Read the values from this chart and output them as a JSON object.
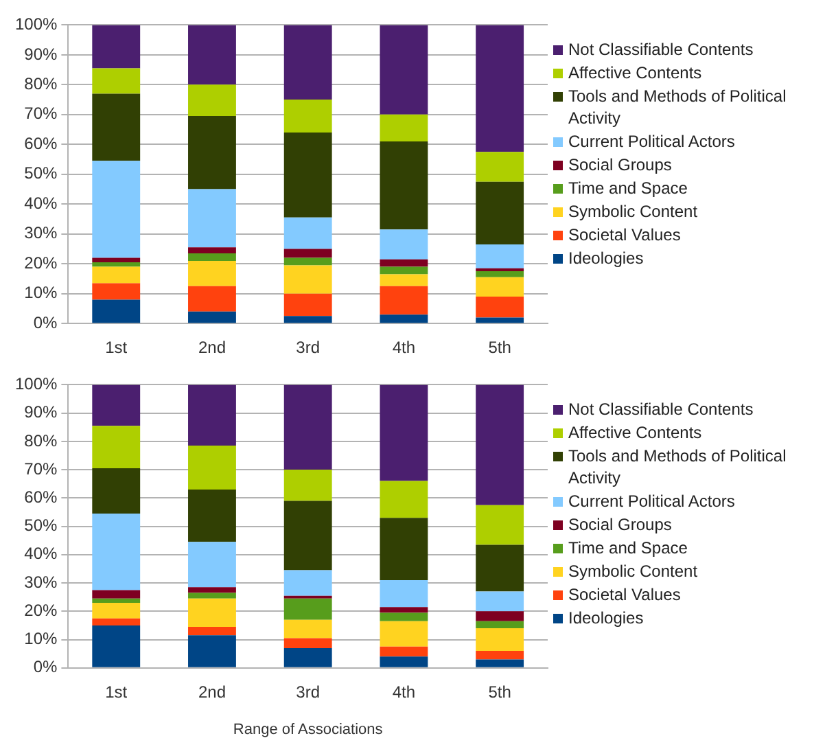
{
  "chart_data": [
    {
      "type": "bar",
      "stacked": true,
      "categories": [
        "1st",
        "2nd",
        "3rd",
        "4th",
        "5th"
      ],
      "ylim": [
        0,
        100
      ],
      "yticks": [
        {
          "value": 0,
          "label": "0%"
        },
        {
          "value": 10,
          "label": "10%"
        },
        {
          "value": 20,
          "label": "20%"
        },
        {
          "value": 30,
          "label": "30%"
        },
        {
          "value": 40,
          "label": "40%"
        },
        {
          "value": 50,
          "label": "50%"
        },
        {
          "value": 60,
          "label": "60%"
        },
        {
          "value": 70,
          "label": "70%"
        },
        {
          "value": 80,
          "label": "80%"
        },
        {
          "value": 90,
          "label": "90%"
        },
        {
          "value": 100,
          "label": "100%"
        }
      ],
      "grid": "y",
      "legend": "right",
      "series": [
        {
          "name": "Ideologies",
          "color": "#004586",
          "values": [
            8,
            4,
            2.5,
            3,
            2
          ]
        },
        {
          "name": "Societal Values",
          "color": "#ff420e",
          "values": [
            5.5,
            8.5,
            7.5,
            9.5,
            7
          ]
        },
        {
          "name": "Symbolic Content",
          "color": "#ffd320",
          "values": [
            5.5,
            8.5,
            9.5,
            4,
            6.5
          ]
        },
        {
          "name": "Time and Space",
          "color": "#579d1c",
          "values": [
            1.5,
            2.5,
            2.5,
            2.5,
            2
          ]
        },
        {
          "name": "Social Groups",
          "color": "#7e0021",
          "values": [
            1.5,
            2,
            3,
            2.5,
            1
          ]
        },
        {
          "name": "Current Political Actors",
          "color": "#83caff",
          "values": [
            32.5,
            19.5,
            10.5,
            10,
            8
          ]
        },
        {
          "name": "Tools and Methods of Political Activity",
          "color": "#314004",
          "values": [
            22.5,
            24.5,
            28.5,
            29.5,
            21
          ]
        },
        {
          "name": "Affective Contents",
          "color": "#aecf00",
          "values": [
            8.5,
            10.5,
            11,
            9,
            10
          ]
        },
        {
          "name": "Not Classifiable Contents",
          "color": "#4b1f6f",
          "values": [
            14.5,
            20,
            25,
            30,
            42.5
          ]
        }
      ]
    },
    {
      "type": "bar",
      "stacked": true,
      "xlabel": "Range of Associations",
      "categories": [
        "1st",
        "2nd",
        "3rd",
        "4th",
        "5th"
      ],
      "ylim": [
        0,
        100
      ],
      "yticks": [
        {
          "value": 0,
          "label": "0%"
        },
        {
          "value": 10,
          "label": "10%"
        },
        {
          "value": 20,
          "label": "20%"
        },
        {
          "value": 30,
          "label": "30%"
        },
        {
          "value": 40,
          "label": "40%"
        },
        {
          "value": 50,
          "label": "50%"
        },
        {
          "value": 60,
          "label": "60%"
        },
        {
          "value": 70,
          "label": "70%"
        },
        {
          "value": 80,
          "label": "80%"
        },
        {
          "value": 90,
          "label": "90%"
        },
        {
          "value": 100,
          "label": "100%"
        }
      ],
      "grid": "y",
      "legend": "right",
      "series": [
        {
          "name": "Ideologies",
          "color": "#004586",
          "values": [
            15,
            11.5,
            7,
            4,
            3
          ]
        },
        {
          "name": "Societal Values",
          "color": "#ff420e",
          "values": [
            2.5,
            3,
            3.5,
            3.5,
            3
          ]
        },
        {
          "name": "Symbolic Content",
          "color": "#ffd320",
          "values": [
            5.5,
            10,
            6.5,
            9,
            8
          ]
        },
        {
          "name": "Time and Space",
          "color": "#579d1c",
          "values": [
            1.5,
            2,
            7.5,
            3,
            2.5
          ]
        },
        {
          "name": "Social Groups",
          "color": "#7e0021",
          "values": [
            3,
            2,
            1,
            2,
            3.5
          ]
        },
        {
          "name": "Current Political Actors",
          "color": "#83caff",
          "values": [
            27,
            16,
            9,
            9.5,
            7
          ]
        },
        {
          "name": "Tools and Methods of Political Activity",
          "color": "#314004",
          "values": [
            16,
            18.5,
            24.5,
            22,
            16.5
          ]
        },
        {
          "name": "Affective Contents",
          "color": "#aecf00",
          "values": [
            15,
            15.5,
            11,
            13,
            14
          ]
        },
        {
          "name": "Not Classifiable Contents",
          "color": "#4b1f6f",
          "values": [
            14.5,
            21.5,
            30,
            34,
            42.5
          ]
        }
      ]
    }
  ]
}
